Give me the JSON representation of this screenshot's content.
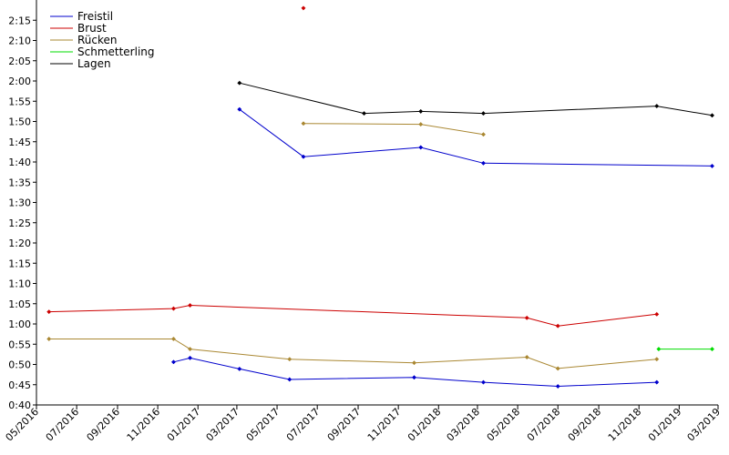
{
  "chart_data": {
    "type": "line",
    "x_tick_labels": [
      "05/2016",
      "07/2016",
      "09/2016",
      "11/2016",
      "01/2017",
      "03/2017",
      "05/2017",
      "07/2017",
      "09/2017",
      "11/2017",
      "01/2018",
      "03/2018",
      "05/2018",
      "07/2018",
      "09/2018",
      "11/2018",
      "01/2019",
      "03/2019"
    ],
    "y_tick_labels": [
      "0:40",
      "0:45",
      "0:50",
      "0:55",
      "1:00",
      "1:05",
      "1:10",
      "1:15",
      "1:20",
      "1:25",
      "1:30",
      "1:35",
      "1:40",
      "1:45",
      "1:50",
      "1:55",
      "2:00",
      "2:05",
      "2:10",
      "2:15"
    ],
    "xlim": [
      "2016-05-01",
      "2019-03-01"
    ],
    "ylim": [
      "0:40",
      "2:20"
    ],
    "grid": false,
    "legend_position": "top-left",
    "series": [
      {
        "name": "Freistil",
        "color": "#0000cc",
        "points": [
          [
            "2016-11-25",
            "0:50.6"
          ],
          [
            "2016-12-20",
            "0:51.6"
          ],
          [
            "2017-03-05",
            "0:48.9"
          ],
          [
            "2017-05-20",
            "0:46.3"
          ],
          [
            "2017-11-25",
            "0:46.8"
          ],
          [
            "2018-03-10",
            "0:45.6"
          ],
          [
            "2018-07-01",
            "0:44.6"
          ],
          [
            "2018-11-28",
            "0:45.6"
          ]
        ]
      },
      {
        "name": "Freistil",
        "color": "#0000cc",
        "points": [
          [
            "2017-03-05",
            "1:53.0"
          ],
          [
            "2017-06-10",
            "1:41.3"
          ],
          [
            "2017-12-05",
            "1:43.6"
          ],
          [
            "2018-03-10",
            "1:39.7"
          ],
          [
            "2019-02-20",
            "1:39.0"
          ]
        ]
      },
      {
        "name": "Brust",
        "color": "#cc0000",
        "points": [
          [
            "2016-05-20",
            "1:03.0"
          ],
          [
            "2016-11-25",
            "1:03.8"
          ],
          [
            "2016-12-20",
            "1:04.6"
          ],
          [
            "2018-05-15",
            "1:01.5"
          ],
          [
            "2018-07-01",
            "0:59.5"
          ],
          [
            "2018-11-28",
            "1:02.4"
          ]
        ]
      },
      {
        "name": "Brust",
        "color": "#cc0000",
        "points": [
          [
            "2017-06-10",
            "2:18.0"
          ]
        ]
      },
      {
        "name": "Rücken",
        "color": "#aa8833",
        "points": [
          [
            "2016-05-20",
            "0:56.3"
          ],
          [
            "2016-11-25",
            "0:56.3"
          ],
          [
            "2016-12-20",
            "0:53.8"
          ],
          [
            "2017-05-20",
            "0:51.3"
          ],
          [
            "2017-11-25",
            "0:50.4"
          ],
          [
            "2018-05-15",
            "0:51.8"
          ],
          [
            "2018-07-01",
            "0:49.0"
          ],
          [
            "2018-11-28",
            "0:51.3"
          ]
        ]
      },
      {
        "name": "Rücken",
        "color": "#aa8833",
        "points": [
          [
            "2017-06-10",
            "1:49.5"
          ],
          [
            "2017-12-05",
            "1:49.3"
          ],
          [
            "2018-03-10",
            "1:46.8"
          ]
        ]
      },
      {
        "name": "Schmetterling",
        "color": "#00dd00",
        "points": [
          [
            "2018-12-01",
            "0:53.8"
          ],
          [
            "2019-02-20",
            "0:53.8"
          ]
        ]
      },
      {
        "name": "Lagen",
        "color": "#000000",
        "points": [
          [
            "2017-03-05",
            "1:59.5"
          ],
          [
            "2017-09-10",
            "1:52.0"
          ],
          [
            "2017-12-05",
            "1:52.5"
          ],
          [
            "2018-03-10",
            "1:52.0"
          ],
          [
            "2018-11-28",
            "1:53.8"
          ],
          [
            "2019-02-20",
            "1:51.5"
          ]
        ]
      }
    ],
    "legend": [
      {
        "name": "Freistil",
        "color": "#0000cc"
      },
      {
        "name": "Brust",
        "color": "#cc0000"
      },
      {
        "name": "Rücken",
        "color": "#aa8833"
      },
      {
        "name": "Schmetterling",
        "color": "#00dd00"
      },
      {
        "name": "Lagen",
        "color": "#000000"
      }
    ]
  }
}
